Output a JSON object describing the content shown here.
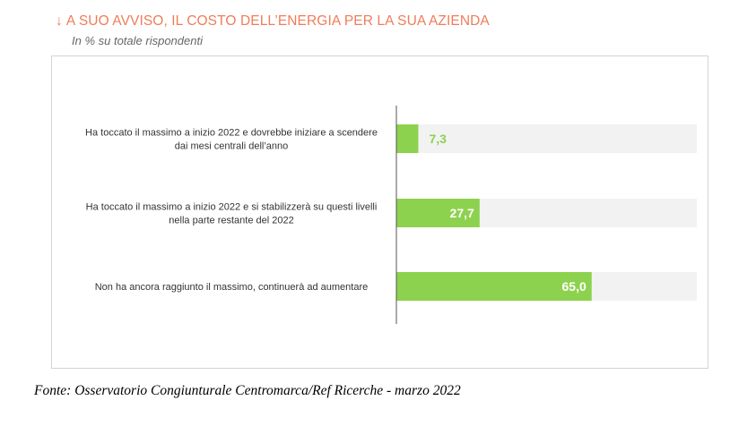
{
  "title": "A SUO AVVISO, IL COSTO DELL’ENERGIA PER LA SUA AZIENDA",
  "title_icon": "arrow-down-icon",
  "subtitle": "In % su totale rispondenti",
  "source": "Fonte: Osservatorio Congiunturale Centromarca/Ref Ricerche - marzo 2022",
  "colors": {
    "title": "#ee7d5a",
    "bar": "#8dd24e",
    "track": "#f2f2f2",
    "label_inside": "#ffffff",
    "label_outside": "#8dd24e"
  },
  "chart_data": {
    "type": "bar",
    "orientation": "horizontal",
    "categories": [
      [
        "Ha toccato il massimo a inizio 2022 e dovrebbe iniziare a scendere",
        "dai mesi centrali dell’anno"
      ],
      [
        "Ha toccato il massimo a inizio 2022 e si stabilizzerà su questi livelli",
        "nella parte restante del 2022"
      ],
      [
        "Non ha ancora raggiunto il massimo, continuerà ad aumentare"
      ]
    ],
    "values": [
      7.3,
      27.7,
      65.0
    ],
    "data_labels": [
      "7,3",
      "27,7",
      "65,0"
    ],
    "xlim": [
      0,
      100
    ],
    "grid": false,
    "legend": "none"
  }
}
